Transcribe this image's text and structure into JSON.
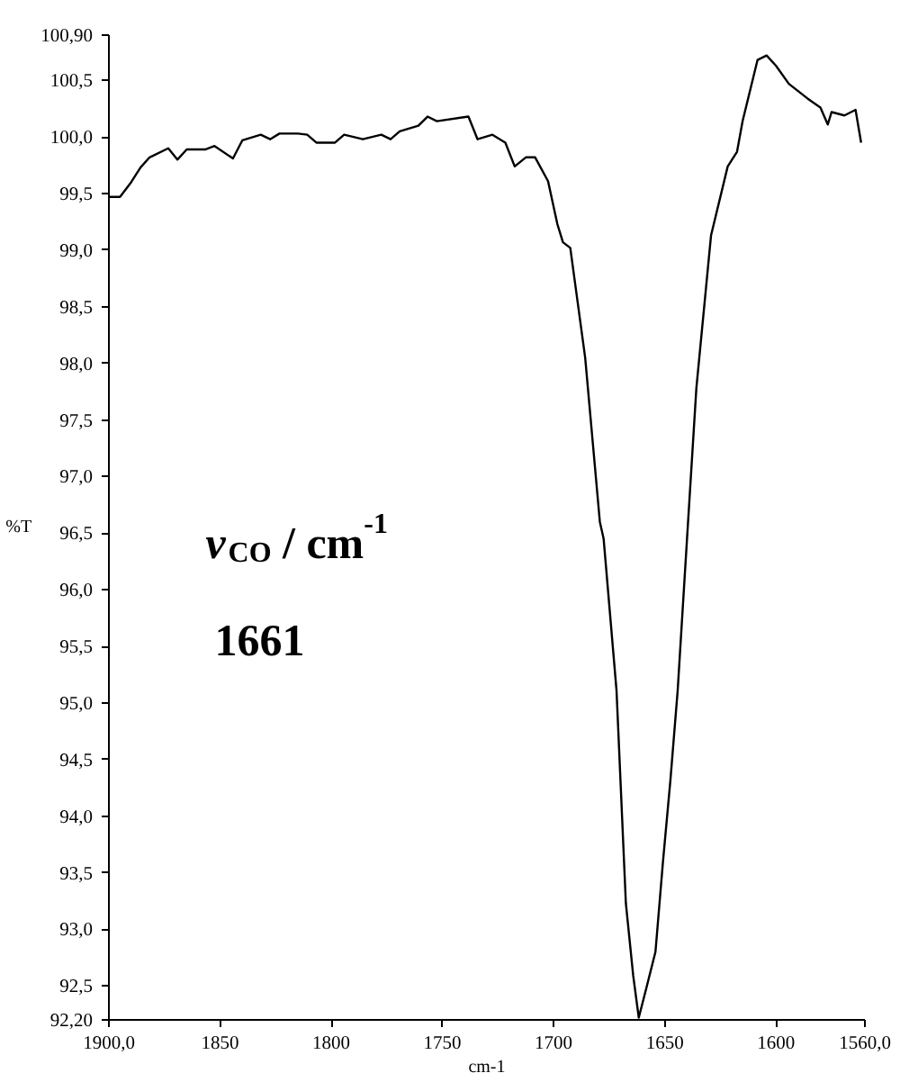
{
  "chart_data": {
    "type": "line",
    "xlabel": "cm-1",
    "ylabel": "%T",
    "annotations": [
      "v$_{CO}$ / cm$^{-1}$",
      "1661"
    ],
    "x": [
      1900,
      1895,
      1890,
      1885.8,
      1881.7,
      1873.3,
      1869.2,
      1865,
      1856.7,
      1852.5,
      1844.2,
      1840,
      1831.7,
      1827.5,
      1823.3,
      1815,
      1810.8,
      1806.7,
      1798.3,
      1794.2,
      1785.8,
      1777.5,
      1773.3,
      1769.2,
      1760.8,
      1756.7,
      1752.5,
      1738.3,
      1734.2,
      1727.5,
      1721.7,
      1717.5,
      1712.5,
      1708.3,
      1702.5,
      1698.3,
      1695.8,
      1692.5,
      1685.8,
      1679.2,
      1677.5,
      1671.7,
      1667.5,
      1664.2,
      1661.7,
      1658.3,
      1654.2,
      1650.8,
      1647.5,
      1644.2,
      1640,
      1635.8,
      1629.2,
      1621.7,
      1617.5,
      1615,
      1608.3,
      1604.2,
      1600,
      1594.2,
      1585.8,
      1580,
      1576.7,
      1575,
      1569.2,
      1564.2,
      1561.7
    ],
    "series": [
      {
        "color": "#000000",
        "values": [
          99.47,
          99.47,
          99.6,
          99.73,
          99.82,
          99.9,
          99.8,
          99.89,
          99.89,
          99.92,
          99.81,
          99.97,
          100.02,
          99.98,
          100.03,
          100.03,
          100.02,
          99.95,
          99.95,
          100.02,
          99.98,
          100.02,
          99.98,
          100.05,
          100.1,
          100.18,
          100.14,
          100.18,
          99.98,
          100.02,
          99.95,
          99.74,
          99.82,
          99.82,
          99.61,
          99.23,
          99.07,
          99.02,
          98.05,
          96.6,
          96.45,
          95.11,
          93.23,
          92.59,
          92.22,
          92.48,
          92.8,
          93.6,
          94.31,
          95.11,
          96.45,
          97.78,
          99.13,
          99.74,
          99.87,
          100.14,
          100.68,
          100.72,
          100.63,
          100.47,
          100.34,
          100.26,
          100.11,
          100.22,
          100.19,
          100.24,
          99.95
        ]
      }
    ],
    "xlim": [
      1900,
      1560
    ],
    "ylim": [
      92.2,
      100.9
    ],
    "xticks": [
      {
        "value": 1900,
        "label": "1900,0"
      },
      1850,
      1800,
      1750,
      1700,
      1650,
      1600,
      {
        "value": 1560,
        "label": "1560,0"
      }
    ],
    "yticks": [
      {
        "value": 92.2,
        "label": "92,20"
      },
      {
        "value": 92.5,
        "label": "92,5"
      },
      {
        "value": 93.0,
        "label": "93,0"
      },
      {
        "value": 93.5,
        "label": "93,5"
      },
      {
        "value": 94.0,
        "label": "94,0"
      },
      {
        "value": 94.5,
        "label": "94,5"
      },
      {
        "value": 95.0,
        "label": "95,0"
      },
      {
        "value": 95.5,
        "label": "95,5"
      },
      {
        "value": 96.0,
        "label": "96,0"
      },
      {
        "value": 96.5,
        "label": "96,5"
      },
      {
        "value": 97.0,
        "label": "97,0"
      },
      {
        "value": 97.5,
        "label": "97,5"
      },
      {
        "value": 98.0,
        "label": "98,0"
      },
      {
        "value": 98.5,
        "label": "98,5"
      },
      {
        "value": 99.0,
        "label": "99,0"
      },
      {
        "value": 99.5,
        "label": "99,5"
      },
      {
        "value": 100.0,
        "label": "100,0"
      },
      {
        "value": 100.5,
        "label": "100,5"
      },
      {
        "value": 100.9,
        "label": "100,90"
      }
    ],
    "grid": false,
    "marker": "none",
    "line_style": "solid"
  }
}
